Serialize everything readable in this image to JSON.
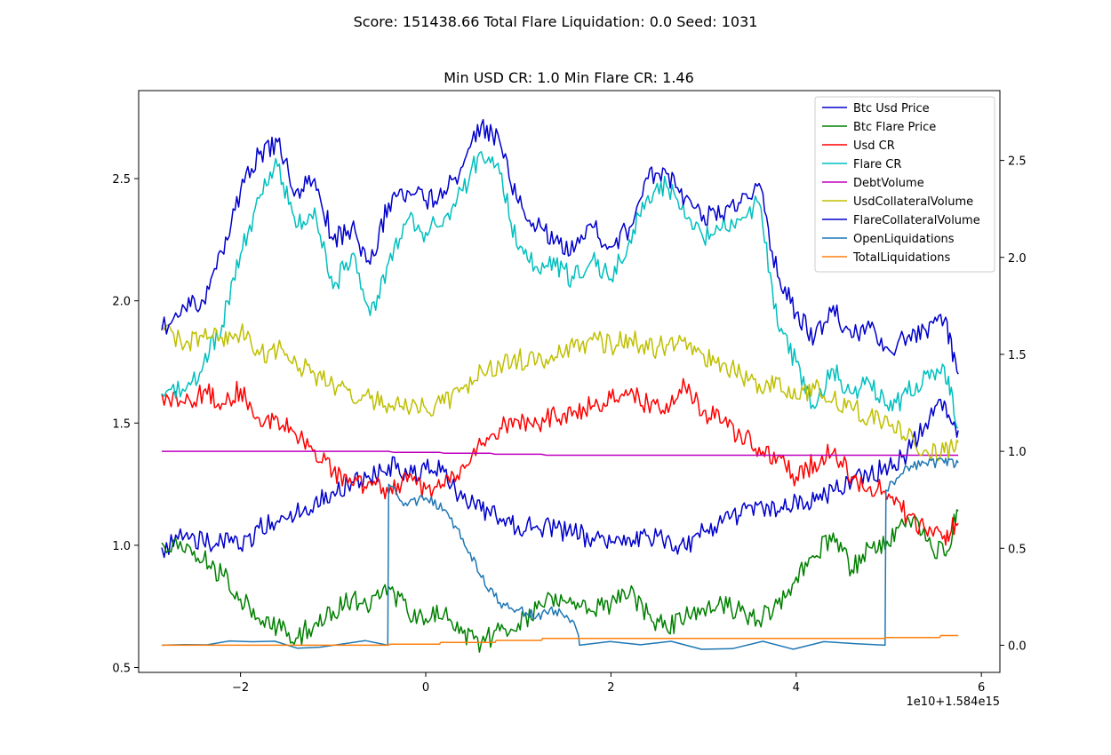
{
  "suptitle": "Score: 151438.66 Total Flare Liquidation: 0.0 Seed: 1031",
  "chart_data": {
    "type": "line",
    "title": "Min USD CR: 1.0 Min Flare CR: 1.46",
    "x_offset_label": "1e10+1.584e15",
    "xlim": [
      -3.1,
      6.2
    ],
    "ylim_left": [
      0.48,
      2.86
    ],
    "ylim_right": [
      -0.14,
      2.86
    ],
    "xticks": [
      -2,
      0,
      2,
      4,
      6
    ],
    "xtick_labels": [
      "−2",
      "0",
      "2",
      "4",
      "6"
    ],
    "yticks_left": [
      0.5,
      1.0,
      1.5,
      2.0,
      2.5
    ],
    "ytick_labels_left": [
      "0.5",
      "1.0",
      "1.5",
      "2.0",
      "2.5"
    ],
    "yticks_right": [
      0.0,
      0.5,
      1.0,
      1.5,
      2.0,
      2.5
    ],
    "ytick_labels_right": [
      "0.0",
      "0.5",
      "1.0",
      "1.5",
      "2.0",
      "2.5"
    ],
    "legend_position": "top-right",
    "grid": false,
    "series": [
      {
        "name": "Btc Usd Price",
        "color": "#0000cc",
        "axis": "left",
        "x": [
          -2.85,
          -2.6,
          -2.4,
          -2.2,
          -2.0,
          -1.8,
          -1.6,
          -1.4,
          -1.2,
          -1.0,
          -0.8,
          -0.6,
          -0.4,
          -0.2,
          0.0,
          0.2,
          0.4,
          0.6,
          0.8,
          1.0,
          1.2,
          1.4,
          1.6,
          1.8,
          2.0,
          2.2,
          2.4,
          2.6,
          2.8,
          3.0,
          3.2,
          3.4,
          3.6,
          3.8,
          4.0,
          4.2,
          4.4,
          4.6,
          4.8,
          5.0,
          5.2,
          5.4,
          5.6,
          5.75
        ],
        "y": [
          0.99,
          1.04,
          1.01,
          1.02,
          0.99,
          1.07,
          1.1,
          1.13,
          1.18,
          1.22,
          1.26,
          1.27,
          1.33,
          1.29,
          1.31,
          1.3,
          1.19,
          1.14,
          1.11,
          1.08,
          1.08,
          1.07,
          1.05,
          1.03,
          1.01,
          1.03,
          1.04,
          1.03,
          0.99,
          1.06,
          1.09,
          1.12,
          1.17,
          1.14,
          1.19,
          1.18,
          1.22,
          1.26,
          1.29,
          1.32,
          1.38,
          1.5,
          1.59,
          1.47
        ]
      },
      {
        "name": "Btc Flare Price",
        "color": "#008000",
        "axis": "left",
        "x": [
          -2.85,
          -2.6,
          -2.4,
          -2.2,
          -2.0,
          -1.8,
          -1.6,
          -1.4,
          -1.2,
          -1.0,
          -0.8,
          -0.6,
          -0.4,
          -0.2,
          0.0,
          0.2,
          0.4,
          0.6,
          0.8,
          1.0,
          1.2,
          1.4,
          1.6,
          1.8,
          2.0,
          2.2,
          2.4,
          2.6,
          2.8,
          3.0,
          3.2,
          3.4,
          3.6,
          3.8,
          4.0,
          4.2,
          4.4,
          4.6,
          4.8,
          5.0,
          5.2,
          5.4,
          5.6,
          5.75
        ],
        "y": [
          1.01,
          0.97,
          0.94,
          0.88,
          0.78,
          0.7,
          0.67,
          0.62,
          0.68,
          0.73,
          0.78,
          0.74,
          0.83,
          0.73,
          0.7,
          0.72,
          0.64,
          0.6,
          0.65,
          0.68,
          0.74,
          0.8,
          0.77,
          0.73,
          0.76,
          0.8,
          0.72,
          0.66,
          0.7,
          0.74,
          0.76,
          0.73,
          0.69,
          0.76,
          0.87,
          0.95,
          1.05,
          0.9,
          0.99,
          1.0,
          1.12,
          1.02,
          0.96,
          1.14
        ]
      },
      {
        "name": "Usd CR",
        "color": "#ff0000",
        "axis": "left",
        "x": [
          -2.85,
          -2.6,
          -2.4,
          -2.2,
          -2.0,
          -1.8,
          -1.6,
          -1.4,
          -1.2,
          -1.0,
          -0.8,
          -0.6,
          -0.4,
          -0.2,
          0.0,
          0.2,
          0.4,
          0.6,
          0.8,
          1.0,
          1.2,
          1.4,
          1.6,
          1.8,
          2.0,
          2.2,
          2.4,
          2.6,
          2.8,
          3.0,
          3.2,
          3.4,
          3.6,
          3.8,
          4.0,
          4.2,
          4.4,
          4.6,
          4.8,
          5.0,
          5.2,
          5.4,
          5.6,
          5.75
        ],
        "y": [
          1.62,
          1.58,
          1.63,
          1.58,
          1.64,
          1.52,
          1.52,
          1.45,
          1.39,
          1.3,
          1.25,
          1.26,
          1.21,
          1.26,
          1.23,
          1.24,
          1.33,
          1.41,
          1.48,
          1.51,
          1.5,
          1.53,
          1.55,
          1.57,
          1.6,
          1.62,
          1.58,
          1.58,
          1.65,
          1.55,
          1.5,
          1.45,
          1.4,
          1.36,
          1.28,
          1.34,
          1.38,
          1.28,
          1.24,
          1.21,
          1.12,
          1.06,
          1.04,
          1.09
        ]
      },
      {
        "name": "Flare CR",
        "color": "#00bfbf",
        "axis": "left",
        "x": [
          -2.85,
          -2.6,
          -2.4,
          -2.2,
          -2.0,
          -1.8,
          -1.6,
          -1.4,
          -1.2,
          -1.0,
          -0.8,
          -0.6,
          -0.4,
          -0.2,
          0.0,
          0.2,
          0.4,
          0.6,
          0.8,
          1.0,
          1.2,
          1.4,
          1.6,
          1.8,
          2.0,
          2.2,
          2.4,
          2.6,
          2.8,
          3.0,
          3.2,
          3.4,
          3.6,
          3.8,
          4.0,
          4.2,
          4.4,
          4.6,
          4.8,
          5.0,
          5.2,
          5.4,
          5.6,
          5.75
        ],
        "y": [
          1.62,
          1.63,
          1.74,
          1.9,
          2.19,
          2.42,
          2.55,
          2.3,
          2.38,
          2.05,
          2.19,
          1.94,
          2.16,
          2.33,
          2.28,
          2.34,
          2.45,
          2.61,
          2.52,
          2.21,
          2.14,
          2.14,
          2.09,
          2.17,
          2.09,
          2.25,
          2.43,
          2.47,
          2.34,
          2.25,
          2.3,
          2.33,
          2.4,
          1.9,
          1.75,
          1.56,
          1.72,
          1.62,
          1.66,
          1.55,
          1.62,
          1.7,
          1.73,
          1.48
        ]
      },
      {
        "name": "DebtVolume",
        "color": "#bf00bf",
        "axis": "right",
        "x": [
          -2.85,
          -0.4,
          -0.35,
          0.15,
          0.2,
          0.7,
          0.75,
          1.25,
          1.3,
          1.65,
          1.7,
          5.75
        ],
        "y": [
          1.0,
          1.0,
          0.995,
          0.995,
          0.99,
          0.99,
          0.985,
          0.985,
          0.98,
          0.98,
          0.98,
          0.98
        ]
      },
      {
        "name": "UsdCollateralVolume",
        "color": "#bfbf00",
        "axis": "left",
        "x": [
          -2.85,
          -2.6,
          -2.4,
          -2.2,
          -2.0,
          -1.8,
          -1.6,
          -1.4,
          -1.2,
          -1.0,
          -0.8,
          -0.6,
          -0.4,
          -0.2,
          0.0,
          0.2,
          0.4,
          0.6,
          0.8,
          1.0,
          1.2,
          1.4,
          1.6,
          1.8,
          2.0,
          2.2,
          2.4,
          2.6,
          2.8,
          3.0,
          3.2,
          3.4,
          3.6,
          3.8,
          4.0,
          4.2,
          4.4,
          4.6,
          4.8,
          5.0,
          5.2,
          5.4,
          5.6,
          5.75
        ],
        "y": [
          1.9,
          1.82,
          1.85,
          1.85,
          1.87,
          1.78,
          1.8,
          1.75,
          1.7,
          1.66,
          1.6,
          1.6,
          1.58,
          1.56,
          1.56,
          1.58,
          1.64,
          1.72,
          1.74,
          1.76,
          1.75,
          1.77,
          1.81,
          1.84,
          1.82,
          1.85,
          1.8,
          1.82,
          1.85,
          1.78,
          1.74,
          1.7,
          1.66,
          1.68,
          1.6,
          1.64,
          1.6,
          1.56,
          1.53,
          1.49,
          1.44,
          1.39,
          1.38,
          1.42
        ]
      },
      {
        "name": "FlareCollateralVolume",
        "color": "#0000cc",
        "axis": "left",
        "x": [
          -2.85,
          -2.6,
          -2.4,
          -2.2,
          -2.0,
          -1.8,
          -1.6,
          -1.4,
          -1.2,
          -1.0,
          -0.8,
          -0.6,
          -0.4,
          -0.2,
          0.0,
          0.2,
          0.4,
          0.6,
          0.8,
          1.0,
          1.2,
          1.4,
          1.6,
          1.8,
          2.0,
          2.2,
          2.4,
          2.6,
          2.8,
          3.0,
          3.2,
          3.4,
          3.6,
          3.8,
          4.0,
          4.2,
          4.4,
          4.6,
          4.8,
          5.0,
          5.2,
          5.4,
          5.6,
          5.75
        ],
        "y": [
          1.88,
          1.97,
          2.0,
          2.2,
          2.45,
          2.6,
          2.65,
          2.45,
          2.5,
          2.25,
          2.3,
          2.15,
          2.4,
          2.45,
          2.41,
          2.45,
          2.55,
          2.72,
          2.65,
          2.4,
          2.3,
          2.25,
          2.2,
          2.3,
          2.22,
          2.3,
          2.5,
          2.52,
          2.42,
          2.35,
          2.35,
          2.4,
          2.48,
          2.1,
          1.95,
          1.85,
          1.98,
          1.85,
          1.89,
          1.8,
          1.85,
          1.88,
          1.92,
          1.7
        ]
      },
      {
        "name": "OpenLiquidations",
        "color": "#1f77b4",
        "axis": "right",
        "x": [
          -2.85,
          -0.41,
          -0.4,
          -0.2,
          0.0,
          0.2,
          0.4,
          0.6,
          0.8,
          1.0,
          1.2,
          1.4,
          1.6,
          1.65,
          1.66,
          4.96,
          4.97,
          5.2,
          5.4,
          5.6,
          5.75
        ],
        "y": [
          0.0,
          0.0,
          0.83,
          0.72,
          0.76,
          0.7,
          0.55,
          0.35,
          0.22,
          0.18,
          0.15,
          0.18,
          0.12,
          0.05,
          0.0,
          0.0,
          0.8,
          0.92,
          0.94,
          0.94,
          0.94
        ]
      },
      {
        "name": "TotalLiquidations",
        "color": "#ff7f0e",
        "axis": "right",
        "x": [
          -2.85,
          -0.4,
          -0.39,
          0.15,
          0.16,
          0.75,
          0.76,
          1.25,
          1.26,
          4.95,
          4.96,
          5.55,
          5.56,
          5.75
        ],
        "y": [
          0.0,
          0.0,
          0.005,
          0.005,
          0.015,
          0.015,
          0.025,
          0.025,
          0.035,
          0.035,
          0.04,
          0.04,
          0.05,
          0.05
        ]
      }
    ]
  }
}
